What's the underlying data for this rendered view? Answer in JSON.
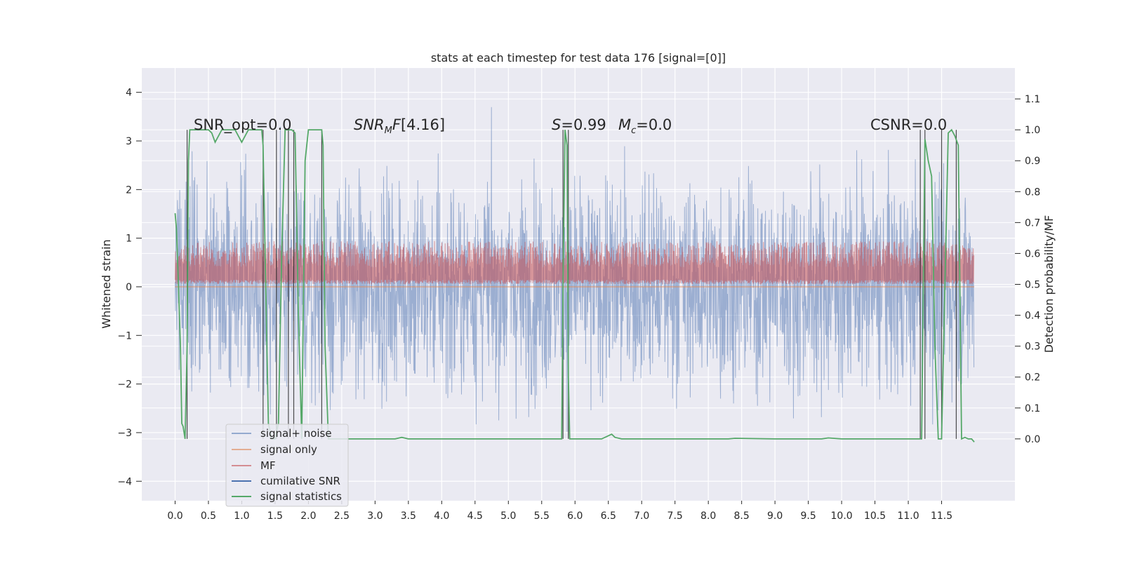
{
  "chart_data": {
    "type": "line",
    "title": "stats at each timestep for test data 176 [signal=[0]]",
    "ylabel_left": "Whitened strain",
    "ylabel_right": "Detection probability/MF",
    "xlim": [
      -0.5,
      12.6
    ],
    "ylim_left": [
      -4.4,
      4.5
    ],
    "ylim_right": [
      -0.2,
      1.2
    ],
    "x_ticks": [
      "0.0",
      "0.5",
      "1.0",
      "1.5",
      "2.0",
      "2.5",
      "3.0",
      "3.5",
      "4.0",
      "4.5",
      "5.0",
      "5.5",
      "6.0",
      "6.5",
      "7.0",
      "7.5",
      "8.0",
      "8.5",
      "9.0",
      "9.5",
      "10.0",
      "10.5",
      "11.0",
      "11.5"
    ],
    "y_ticks_left": [
      "4",
      "3",
      "2",
      "1",
      "0",
      "−1",
      "−2",
      "−3",
      "−4"
    ],
    "y_ticks_right": [
      "1.1",
      "1.0",
      "0.9",
      "0.8",
      "0.7",
      "0.6",
      "0.5",
      "0.4",
      "0.3",
      "0.2",
      "0.1",
      "0.0"
    ],
    "grid": true,
    "legend_position": "lower-left",
    "annotations": {
      "snr_opt": "SNR_opt=0.0",
      "snr_mf": "[4.16]",
      "s_value": "=0.99",
      "mc_value": "=0.0",
      "csnr": "CSNR=0.0"
    },
    "series": [
      {
        "name": "signal+ noise",
        "color": "#4c72b0",
        "description": "whitened strain noise, range approx -4 to 4"
      },
      {
        "name": "signal only",
        "color": "#dd8452",
        "values_constant": 0.0
      },
      {
        "name": "MF",
        "color": "#c44e52",
        "description": "matched filter output approx 0.5 to 0.65 on right axis"
      },
      {
        "name": "cumilative SNR",
        "color": "#4c72b0"
      },
      {
        "name": "signal statistics",
        "color": "#55a868",
        "x": [
          0.0,
          0.02,
          0.05,
          0.08,
          0.1,
          0.12,
          0.15,
          0.18,
          0.2,
          0.22,
          0.25,
          0.28,
          0.3,
          0.4,
          0.5,
          0.55,
          0.6,
          0.7,
          0.8,
          0.9,
          1.0,
          1.1,
          1.2,
          1.3,
          1.32,
          1.35,
          1.4,
          1.45,
          1.5,
          1.55,
          1.6,
          1.65,
          1.7,
          1.75,
          1.8,
          1.85,
          1.9,
          1.95,
          2.0,
          2.1,
          2.2,
          2.22,
          2.25,
          2.3,
          2.5,
          3.0,
          3.3,
          3.4,
          3.5,
          4.0,
          5.0,
          5.8,
          5.82,
          5.85,
          5.88,
          5.9,
          5.92,
          5.95,
          6.0,
          6.2,
          6.4,
          6.5,
          6.55,
          6.6,
          6.7,
          7.0,
          8.0,
          8.3,
          8.4,
          9.0,
          9.7,
          9.8,
          10.0,
          10.5,
          11.0,
          11.2,
          11.25,
          11.3,
          11.35,
          11.4,
          11.45,
          11.5,
          11.55,
          11.6,
          11.65,
          11.7,
          11.75,
          11.8,
          11.85,
          11.9,
          11.95,
          11.99
        ],
        "y": [
          0.73,
          0.68,
          0.5,
          0.3,
          0.05,
          0.04,
          0.0,
          0.3,
          0.9,
          1.0,
          1.0,
          1.0,
          1.0,
          1.0,
          1.0,
          0.99,
          0.96,
          1.0,
          1.0,
          1.0,
          0.96,
          1.0,
          1.0,
          1.0,
          0.95,
          0.6,
          0.05,
          0.0,
          0.0,
          0.05,
          0.6,
          1.0,
          1.0,
          1.0,
          0.99,
          0.4,
          0.0,
          0.9,
          1.0,
          1.0,
          1.0,
          0.95,
          0.3,
          0.0,
          0.0,
          0.0,
          0.0,
          0.005,
          0.0,
          0.0,
          0.0,
          0.0,
          0.5,
          1.0,
          0.95,
          0.2,
          0.0,
          0.0,
          0.0,
          0.0,
          0.0,
          0.01,
          0.015,
          0.005,
          0.0,
          0.0,
          0.0,
          0.0,
          0.002,
          0.0,
          0.0,
          0.003,
          0.0,
          0.0,
          0.0,
          0.0,
          0.97,
          0.9,
          0.85,
          0.3,
          0.0,
          0.0,
          0.5,
          0.99,
          1.0,
          0.98,
          0.95,
          0.0,
          0.005,
          0.0,
          0.0,
          -0.01
        ]
      }
    ],
    "vertical_lines_x": [
      0.18,
      1.32,
      1.52,
      1.7,
      1.78,
      2.2,
      5.82,
      5.9,
      11.18,
      11.25,
      11.5,
      11.72
    ]
  },
  "legend": [
    {
      "label": "signal+ noise",
      "color": "#4c72b0",
      "alpha": 0.5
    },
    {
      "label": "signal only",
      "color": "#dd8452",
      "alpha": 0.6
    },
    {
      "label": "MF",
      "color": "#c44e52",
      "alpha": 0.6
    },
    {
      "label": "cumilative SNR",
      "color": "#4c72b0",
      "alpha": 1
    },
    {
      "label": "signal statistics",
      "color": "#55a868",
      "alpha": 1
    }
  ]
}
